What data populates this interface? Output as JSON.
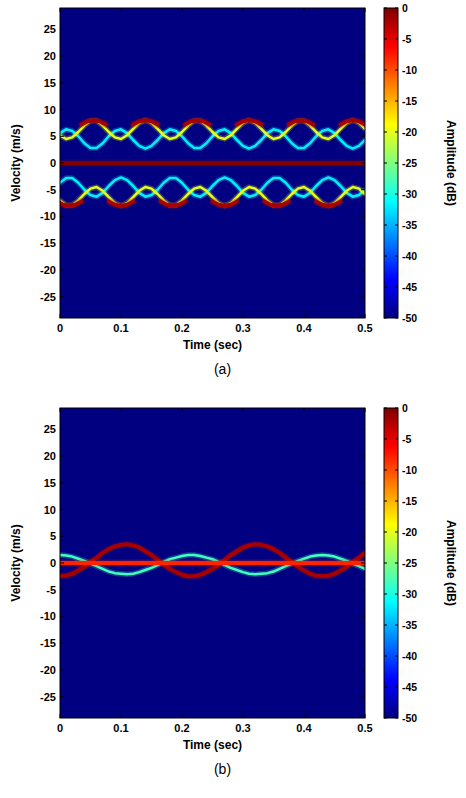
{
  "chart_data": [
    {
      "type": "spectrogram",
      "label": "(a)",
      "xlabel": "Time (sec)",
      "ylabel": "Velocity (m/s)",
      "xlim": [
        0,
        0.5
      ],
      "ylim": [
        -29,
        29
      ],
      "xticks": [
        0,
        0.1,
        0.2,
        0.3,
        0.4,
        0.5
      ],
      "yticks": [
        -25,
        -20,
        -15,
        -10,
        -5,
        0,
        5,
        10,
        15,
        20,
        25
      ],
      "colorbar": {
        "label": "Amplitude (dB)",
        "lim": [
          -50,
          0
        ],
        "ticks": [
          0,
          -5,
          -10,
          -15,
          -20,
          -25,
          -30,
          -35,
          -40,
          -45,
          -50
        ]
      },
      "background_amplitude": -50,
      "x": [
        0,
        0.01,
        0.02,
        0.03,
        0.04,
        0.05,
        0.06,
        0.07,
        0.08,
        0.09,
        0.1,
        0.11,
        0.12,
        0.13,
        0.14,
        0.15,
        0.16,
        0.17,
        0.18,
        0.19,
        0.2,
        0.21,
        0.22,
        0.23,
        0.24,
        0.25,
        0.26,
        0.27,
        0.28,
        0.29,
        0.3,
        0.31,
        0.32,
        0.33,
        0.34,
        0.35,
        0.36,
        0.37,
        0.38,
        0.39,
        0.4,
        0.41,
        0.42,
        0.43,
        0.44,
        0.45,
        0.46,
        0.47,
        0.48,
        0.49,
        0.5
      ],
      "series": [
        {
          "amplitude": -32,
          "values": [
            5.6,
            6.3,
            6.0,
            5.0,
            3.7,
            2.8,
            2.8,
            3.7,
            5.0,
            6.0,
            6.3,
            5.6,
            4.3,
            3.2,
            2.7,
            3.2,
            4.3,
            5.6,
            6.3,
            6.0,
            5.0,
            3.7,
            2.8,
            2.8,
            3.7,
            5.0,
            6.0,
            6.3,
            5.6,
            4.3,
            3.2,
            2.7,
            3.2,
            4.3,
            5.6,
            6.3,
            6.0,
            5.0,
            3.7,
            2.8,
            2.8,
            3.7,
            5.0,
            6.0,
            6.3,
            5.6,
            4.3,
            3.2,
            2.7,
            3.2,
            4.3
          ]
        },
        {
          "amplitude": -32,
          "values": [
            -3.7,
            -2.8,
            -2.8,
            -3.7,
            -5.0,
            -6.0,
            -6.3,
            -5.6,
            -4.3,
            -3.2,
            -2.7,
            -3.2,
            -4.3,
            -5.6,
            -6.3,
            -6.0,
            -5.0,
            -3.7,
            -2.8,
            -2.8,
            -3.7,
            -5.0,
            -6.0,
            -6.3,
            -5.6,
            -4.3,
            -3.2,
            -2.7,
            -3.2,
            -4.3,
            -5.6,
            -6.3,
            -6.0,
            -5.0,
            -3.7,
            -2.8,
            -2.8,
            -3.7,
            -5.0,
            -6.0,
            -6.3,
            -5.6,
            -4.3,
            -3.2,
            -2.7,
            -3.2,
            -4.3,
            -5.6,
            -6.3,
            -6.0,
            -5.0
          ]
        },
        {
          "amplitude": -20,
          "values": [
            5.2,
            4.5,
            4.8,
            5.8,
            7.0,
            7.9,
            7.9,
            7.0,
            5.8,
            4.8,
            4.5,
            5.2,
            6.4,
            7.5,
            8.0,
            7.5,
            6.4,
            5.2,
            4.5,
            4.8,
            5.8,
            7.0,
            7.9,
            7.9,
            7.0,
            5.8,
            4.8,
            4.5,
            5.2,
            6.4,
            7.5,
            8.0,
            7.5,
            6.4,
            5.2,
            4.5,
            4.8,
            5.8,
            7.0,
            7.9,
            7.9,
            7.0,
            5.8,
            4.8,
            4.5,
            5.2,
            6.4,
            7.5,
            8.0,
            7.5,
            6.4
          ]
        },
        {
          "amplitude": -20,
          "values": [
            -7.0,
            -7.9,
            -7.9,
            -7.0,
            -5.8,
            -4.8,
            -4.5,
            -5.2,
            -6.4,
            -7.5,
            -8.0,
            -7.5,
            -6.4,
            -5.2,
            -4.5,
            -4.8,
            -5.8,
            -7.0,
            -7.9,
            -7.9,
            -7.0,
            -5.8,
            -4.8,
            -4.5,
            -5.2,
            -6.4,
            -7.5,
            -8.0,
            -7.5,
            -6.4,
            -5.2,
            -4.5,
            -4.8,
            -5.8,
            -7.0,
            -7.9,
            -7.9,
            -7.0,
            -5.8,
            -4.8,
            -4.5,
            -5.2,
            -6.4,
            -7.5,
            -8.0,
            -7.5,
            -6.4,
            -5.2,
            -4.5,
            -4.8,
            -5.8
          ]
        },
        {
          "amplitude": -2,
          "x": [
            0.035,
            0.045,
            0.055,
            0.065,
            0.075
          ],
          "values": [
            7.2,
            7.8,
            8.0,
            7.8,
            7.2
          ]
        },
        {
          "amplitude": -2,
          "x": [
            0.12,
            0.13,
            0.14,
            0.15,
            0.16
          ],
          "values": [
            7.2,
            7.8,
            8.0,
            7.8,
            7.2
          ]
        },
        {
          "amplitude": -2,
          "x": [
            0.205,
            0.215,
            0.225,
            0.235,
            0.245
          ],
          "values": [
            7.2,
            7.8,
            8.0,
            7.8,
            7.2
          ]
        },
        {
          "amplitude": -2,
          "x": [
            0.29,
            0.3,
            0.31,
            0.32,
            0.33
          ],
          "values": [
            7.2,
            7.8,
            8.0,
            7.8,
            7.2
          ]
        },
        {
          "amplitude": -2,
          "x": [
            0.375,
            0.385,
            0.395,
            0.405,
            0.415
          ],
          "values": [
            7.2,
            7.8,
            8.0,
            7.8,
            7.2
          ]
        },
        {
          "amplitude": -2,
          "x": [
            0.46,
            0.47,
            0.48,
            0.49,
            0.5
          ],
          "values": [
            7.2,
            7.8,
            8.0,
            7.8,
            7.2
          ]
        },
        {
          "amplitude": -2,
          "x": [
            -0.005,
            0.005,
            0.015,
            0.025,
            0.035
          ],
          "values": [
            -7.2,
            -7.8,
            -8.0,
            -7.8,
            -7.2
          ]
        },
        {
          "amplitude": -2,
          "x": [
            0.08,
            0.09,
            0.1,
            0.11,
            0.12
          ],
          "values": [
            -7.2,
            -7.8,
            -8.0,
            -7.8,
            -7.2
          ]
        },
        {
          "amplitude": -2,
          "x": [
            0.165,
            0.175,
            0.185,
            0.195,
            0.205
          ],
          "values": [
            -7.2,
            -7.8,
            -8.0,
            -7.8,
            -7.2
          ]
        },
        {
          "amplitude": -2,
          "x": [
            0.25,
            0.26,
            0.27,
            0.28,
            0.29
          ],
          "values": [
            -7.2,
            -7.8,
            -8.0,
            -7.8,
            -7.2
          ]
        },
        {
          "amplitude": -2,
          "x": [
            0.335,
            0.345,
            0.355,
            0.365,
            0.375
          ],
          "values": [
            -7.2,
            -7.8,
            -8.0,
            -7.8,
            -7.2
          ]
        },
        {
          "amplitude": -2,
          "x": [
            0.42,
            0.43,
            0.44,
            0.45,
            0.46
          ],
          "values": [
            -7.2,
            -7.8,
            -8.0,
            -7.8,
            -7.2
          ]
        },
        {
          "amplitude": 0,
          "x": [
            0,
            0.5
          ],
          "values": [
            0,
            0
          ]
        }
      ]
    },
    {
      "type": "spectrogram",
      "label": "(b)",
      "xlabel": "Time (sec)",
      "ylabel": "Velocity (m/s)",
      "xlim": [
        0,
        0.5
      ],
      "ylim": [
        -29,
        29
      ],
      "xticks": [
        0,
        0.1,
        0.2,
        0.3,
        0.4,
        0.5
      ],
      "yticks": [
        -25,
        -20,
        -15,
        -10,
        -5,
        0,
        5,
        10,
        15,
        20,
        25
      ],
      "colorbar": {
        "label": "Amplitude (dB)",
        "lim": [
          -50,
          0
        ],
        "ticks": [
          0,
          -5,
          -10,
          -15,
          -20,
          -25,
          -30,
          -35,
          -40,
          -45,
          -50
        ]
      },
      "background_amplitude": -50,
      "x": [
        0,
        0.01,
        0.02,
        0.03,
        0.04,
        0.05,
        0.06,
        0.07,
        0.08,
        0.09,
        0.1,
        0.11,
        0.12,
        0.13,
        0.14,
        0.15,
        0.16,
        0.17,
        0.18,
        0.19,
        0.2,
        0.21,
        0.22,
        0.23,
        0.24,
        0.25,
        0.26,
        0.27,
        0.28,
        0.29,
        0.3,
        0.31,
        0.32,
        0.33,
        0.34,
        0.35,
        0.36,
        0.37,
        0.38,
        0.39,
        0.4,
        0.41,
        0.42,
        0.43,
        0.44,
        0.45,
        0.46,
        0.47,
        0.48,
        0.49,
        0.5
      ],
      "series": [
        {
          "amplitude": -28,
          "values": [
            1.5,
            1.4,
            1.2,
            0.8,
            0.4,
            -0.1,
            -0.6,
            -1.1,
            -1.6,
            -1.9,
            -2.0,
            -2.1,
            -2.0,
            -1.7,
            -1.3,
            -0.9,
            -0.4,
            0.2,
            0.7,
            1.0,
            1.3,
            1.5,
            1.5,
            1.3,
            1.0,
            0.7,
            0.2,
            -0.4,
            -0.9,
            -1.3,
            -1.7,
            -2.0,
            -2.1,
            -2.0,
            -1.9,
            -1.6,
            -1.1,
            -0.6,
            -0.1,
            0.4,
            0.8,
            1.2,
            1.4,
            1.5,
            1.4,
            1.2,
            0.8,
            0.4,
            -0.1,
            -0.6,
            -1.1
          ]
        },
        {
          "amplitude": -2,
          "values": [
            -2.5,
            -2.4,
            -2.0,
            -1.4,
            -0.7,
            0.2,
            1.0,
            1.9,
            2.6,
            3.1,
            3.4,
            3.5,
            3.3,
            2.9,
            2.2,
            1.5,
            0.6,
            -0.3,
            -1.1,
            -1.7,
            -2.2,
            -2.5,
            -2.5,
            -2.2,
            -1.7,
            -1.1,
            -0.3,
            0.6,
            1.5,
            2.2,
            2.9,
            3.3,
            3.5,
            3.4,
            3.1,
            2.6,
            1.9,
            1.0,
            0.2,
            -0.7,
            -1.4,
            -2.0,
            -2.4,
            -2.5,
            -2.4,
            -2.0,
            -1.4,
            -0.7,
            0.2,
            1.0,
            1.9
          ]
        },
        {
          "amplitude": -8,
          "x": [
            0,
            0.5
          ],
          "values": [
            0,
            0
          ]
        }
      ]
    }
  ]
}
